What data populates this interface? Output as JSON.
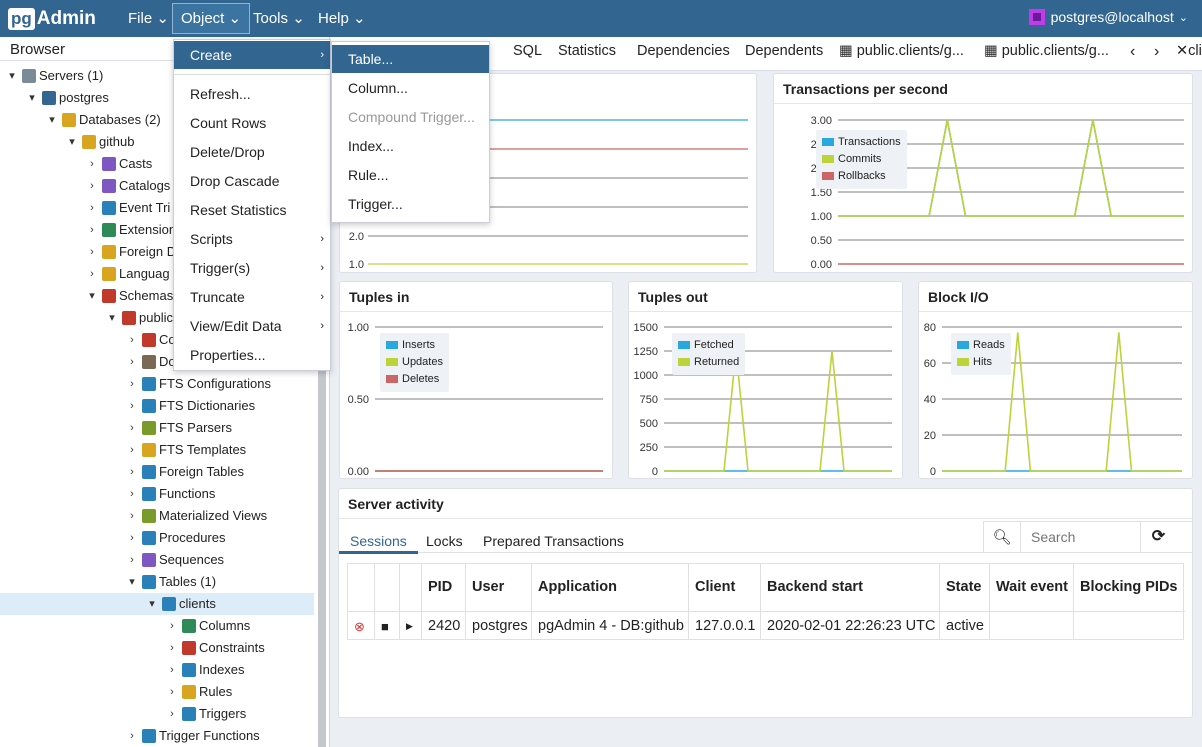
{
  "navbar": {
    "logo_pg": "pg",
    "logo_admin": "Admin",
    "menus": [
      "File",
      "Object",
      "Tools",
      "Help"
    ],
    "user": "postgres@localhost"
  },
  "browser": {
    "title": "Browser",
    "tree": [
      {
        "label": "Servers (1)",
        "icon": "servers-icon",
        "color": "#7a8a99",
        "twisty": "▾"
      },
      {
        "label": "postgres",
        "icon": "elephant-icon",
        "color": "#336791",
        "twisty": "▾"
      },
      {
        "label": "Databases (2)",
        "icon": "databases-icon",
        "color": "#d9a520",
        "twisty": "▾"
      },
      {
        "label": "github",
        "icon": "database-icon",
        "color": "#d9a520",
        "twisty": "▾"
      },
      {
        "label": "Casts",
        "icon": "casts-icon",
        "color": "#7e57c2",
        "twisty": "›"
      },
      {
        "label": "Catalogs",
        "icon": "catalogs-icon",
        "color": "#7e57c2",
        "twisty": "›"
      },
      {
        "label": "Event Tri",
        "icon": "event-trigger-icon",
        "color": "#2a80b9",
        "twisty": "›"
      },
      {
        "label": "Extension",
        "icon": "extension-icon",
        "color": "#2e8b57",
        "twisty": "›"
      },
      {
        "label": "Foreign D",
        "icon": "foreign-data-icon",
        "color": "#d9a520",
        "twisty": "›"
      },
      {
        "label": "Languag",
        "icon": "language-icon",
        "color": "#d9a520",
        "twisty": "›"
      },
      {
        "label": "Schemas",
        "icon": "schemas-icon",
        "color": "#c0392b",
        "twisty": "▾"
      },
      {
        "label": "public",
        "icon": "schema-icon",
        "color": "#c0392b",
        "twisty": "▾"
      },
      {
        "label": "Co",
        "icon": "collations-icon",
        "color": "#c0392b",
        "twisty": "›"
      },
      {
        "label": "Do",
        "icon": "domains-icon",
        "color": "#7a6a55",
        "twisty": "›"
      },
      {
        "label": "FTS Configurations",
        "icon": "fts-config-icon",
        "color": "#2a80b9",
        "twisty": "›"
      },
      {
        "label": "FTS Dictionaries",
        "icon": "fts-dict-icon",
        "color": "#2a80b9",
        "twisty": "›"
      },
      {
        "label": "FTS Parsers",
        "icon": "fts-parser-icon",
        "color": "#7a9a2a",
        "twisty": "›"
      },
      {
        "label": "FTS Templates",
        "icon": "fts-template-icon",
        "color": "#d9a520",
        "twisty": "›"
      },
      {
        "label": "Foreign Tables",
        "icon": "foreign-tables-icon",
        "color": "#2a80b9",
        "twisty": "›"
      },
      {
        "label": "Functions",
        "icon": "functions-icon",
        "color": "#2a80b9",
        "twisty": "›"
      },
      {
        "label": "Materialized Views",
        "icon": "mat-views-icon",
        "color": "#7a9a2a",
        "twisty": "›"
      },
      {
        "label": "Procedures",
        "icon": "procedures-icon",
        "color": "#2a80b9",
        "twisty": "›"
      },
      {
        "label": "Sequences",
        "icon": "sequences-icon",
        "color": "#7e57c2",
        "twisty": "›"
      },
      {
        "label": "Tables (1)",
        "icon": "tables-icon",
        "color": "#2a80b9",
        "twisty": "▾"
      },
      {
        "label": "clients",
        "icon": "table-icon",
        "color": "#2a80b9",
        "twisty": "▾"
      },
      {
        "label": "Columns",
        "icon": "columns-icon",
        "color": "#2e8b57",
        "twisty": "›"
      },
      {
        "label": "Constraints",
        "icon": "constraints-icon",
        "color": "#c0392b",
        "twisty": "›"
      },
      {
        "label": "Indexes",
        "icon": "indexes-icon",
        "color": "#2a80b9",
        "twisty": "›"
      },
      {
        "label": "Rules",
        "icon": "rules-icon",
        "color": "#d9a520",
        "twisty": "›"
      },
      {
        "label": "Triggers",
        "icon": "triggers-icon",
        "color": "#2a80b9",
        "twisty": "›"
      },
      {
        "label": "Trigger Functions",
        "icon": "trigger-functions-icon",
        "color": "#2a80b9",
        "twisty": "›"
      }
    ]
  },
  "tabs": [
    "s",
    "SQL",
    "Statistics",
    "Dependencies",
    "Dependents",
    "public.clients/g...",
    "public.clients/g...",
    "cli"
  ],
  "object_menu": {
    "items": [
      "Create",
      "Refresh...",
      "Count Rows",
      "Delete/Drop",
      "Drop Cascade",
      "Reset Statistics",
      "Scripts",
      "Trigger(s)",
      "Truncate",
      "View/Edit Data",
      "Properties..."
    ],
    "submenu": [
      "Table...",
      "Column...",
      "Compound Trigger...",
      "Index...",
      "Rule...",
      "Trigger..."
    ]
  },
  "dashboard": {
    "tps": {
      "title": "Transactions per second",
      "legend": [
        "Transactions",
        "Commits",
        "Rollbacks"
      ]
    },
    "tuples_in": {
      "title": "Tuples in",
      "legend": [
        "Inserts",
        "Updates",
        "Deletes"
      ]
    },
    "tuples_out": {
      "title": "Tuples out",
      "legend": [
        "Fetched",
        "Returned"
      ]
    },
    "block_io": {
      "title": "Block I/O",
      "legend": [
        "Reads",
        "Hits"
      ]
    }
  },
  "chart_data": [
    {
      "type": "line",
      "title": "",
      "y_ticks": [
        "1.0",
        "2.0"
      ],
      "note": "partially hidden by menu"
    },
    {
      "type": "line",
      "title": "Transactions per second",
      "ylim": [
        0,
        3
      ],
      "y_ticks": [
        "0.00",
        "0.50",
        "1.00",
        "1.50",
        "2.00",
        "2.50",
        "3.00"
      ],
      "series": [
        {
          "name": "Transactions",
          "values": [
            1,
            1,
            1,
            1,
            1,
            1,
            3,
            1,
            1,
            1,
            1,
            1,
            1,
            1,
            3,
            1,
            1,
            1,
            1,
            1
          ]
        },
        {
          "name": "Commits",
          "values": [
            1,
            1,
            1,
            1,
            1,
            1,
            3,
            1,
            1,
            1,
            1,
            1,
            1,
            1,
            3,
            1,
            1,
            1,
            1,
            1
          ]
        },
        {
          "name": "Rollbacks",
          "values": [
            0,
            0,
            0,
            0,
            0,
            0,
            0,
            0,
            0,
            0,
            0,
            0,
            0,
            0,
            0,
            0,
            0,
            0,
            0,
            0
          ]
        }
      ]
    },
    {
      "type": "line",
      "title": "Tuples in",
      "ylim": [
        0,
        1
      ],
      "y_ticks": [
        "0.00",
        "0.50",
        "1.00"
      ],
      "series": [
        {
          "name": "Inserts",
          "values": [
            0,
            0,
            0,
            0,
            0,
            0,
            0,
            0,
            0,
            0
          ]
        },
        {
          "name": "Updates",
          "values": [
            0,
            0,
            0,
            0,
            0,
            0,
            0,
            0,
            0,
            0
          ]
        },
        {
          "name": "Deletes",
          "values": [
            0,
            0,
            0,
            0,
            0,
            0,
            0,
            0,
            0,
            0
          ]
        }
      ]
    },
    {
      "type": "line",
      "title": "Tuples out",
      "ylim": [
        0,
        1500
      ],
      "y_ticks": [
        "0",
        "250",
        "500",
        "750",
        "1000",
        "1250",
        "1500"
      ],
      "series": [
        {
          "name": "Fetched",
          "values": [
            0,
            0,
            0,
            0,
            0,
            0,
            0,
            0,
            0,
            0,
            0,
            0,
            0,
            0,
            0,
            0,
            0,
            0,
            0,
            0
          ]
        },
        {
          "name": "Returned",
          "values": [
            0,
            0,
            0,
            0,
            0,
            0,
            1250,
            0,
            0,
            0,
            0,
            0,
            0,
            0,
            1250,
            0,
            0,
            0,
            0,
            0
          ]
        }
      ]
    },
    {
      "type": "line",
      "title": "Block I/O",
      "ylim": [
        0,
        80
      ],
      "y_ticks": [
        "0",
        "20",
        "40",
        "60",
        "80"
      ],
      "series": [
        {
          "name": "Reads",
          "values": [
            0,
            0,
            0,
            0,
            0,
            0,
            0,
            0,
            0,
            0,
            0,
            0,
            0,
            0,
            0,
            0,
            0,
            0,
            0,
            0
          ]
        },
        {
          "name": "Hits",
          "values": [
            0,
            0,
            0,
            0,
            0,
            0,
            77,
            0,
            0,
            0,
            0,
            0,
            0,
            0,
            77,
            0,
            0,
            0,
            0,
            0
          ]
        }
      ]
    }
  ],
  "activity": {
    "title": "Server activity",
    "tabs": [
      "Sessions",
      "Locks",
      "Prepared Transactions"
    ],
    "search_placeholder": "Search",
    "columns": [
      "PID",
      "User",
      "Application",
      "Client",
      "Backend start",
      "State",
      "Wait event",
      "Blocking PIDs"
    ],
    "rows": [
      {
        "pid": "2420",
        "user": "postgres",
        "application": "pgAdmin 4 - DB:github",
        "client": "127.0.0.1",
        "backend_start": "2020-02-01 22:26:23 UTC",
        "state": "active",
        "wait_event": "",
        "blocking_pids": ""
      }
    ]
  },
  "colors": {
    "navbar": "#326690",
    "accent": "#326690",
    "transactions": "#29a8e0",
    "commits": "#bcd33a",
    "rollbacks": "#cc6666"
  }
}
